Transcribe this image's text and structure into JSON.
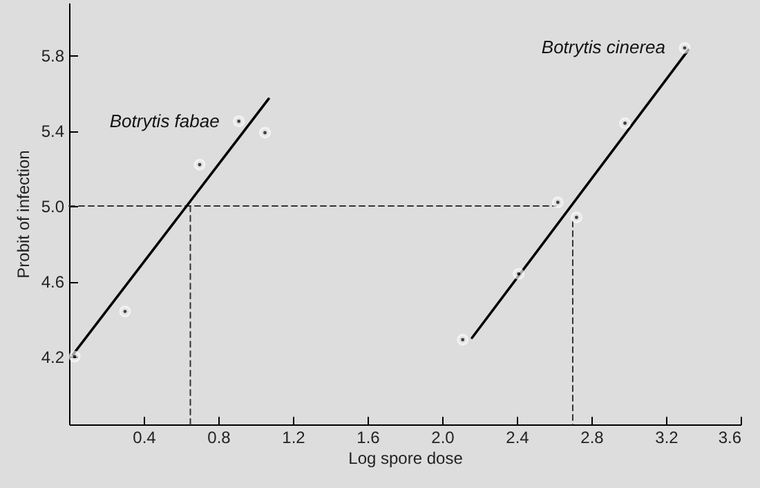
{
  "chart_data": {
    "type": "scatter",
    "xlabel": "Log spore dose",
    "ylabel": "Probit of infection",
    "xlim": [
      0,
      3.6
    ],
    "xticks": [
      {
        "value": 0.4,
        "label": "0.4"
      },
      {
        "value": 0.8,
        "label": "0.8"
      },
      {
        "value": 1.2,
        "label": "1.2"
      },
      {
        "value": 1.6,
        "label": "1.6"
      },
      {
        "value": 2.0,
        "label": "2.0"
      },
      {
        "value": 2.4,
        "label": "2.4"
      },
      {
        "value": 2.8,
        "label": "2.8"
      },
      {
        "value": 3.2,
        "label": "3.2"
      },
      {
        "value": 3.6,
        "label": "3.6"
      }
    ],
    "ylim": [
      3.84,
      6.08
    ],
    "yticks": [
      {
        "value": 4.2,
        "label": "4.2"
      },
      {
        "value": 4.6,
        "label": "4.6"
      },
      {
        "value": 5.0,
        "label": "5.0"
      },
      {
        "value": 5.4,
        "label": "5.4"
      },
      {
        "value": 5.8,
        "label": "5.8"
      }
    ],
    "grid": false,
    "series": [
      {
        "type": "line",
        "line_style": "dashed",
        "color": "#333333",
        "x": [
          0,
          2.61
        ],
        "values": [
          5.0,
          5.0
        ]
      },
      {
        "type": "line",
        "line_style": "dashed",
        "color": "#333333",
        "x": [
          0.65,
          0.65
        ],
        "values": [
          5.0,
          3.84
        ]
      },
      {
        "type": "line",
        "line_style": "dashed",
        "color": "#333333",
        "x": [
          2.7,
          2.7
        ],
        "values": [
          4.92,
          3.84
        ]
      },
      {
        "type": "line",
        "line_style": "solid",
        "color": "#000000",
        "x": [
          0.02,
          1.07
        ],
        "values": [
          4.21,
          5.57
        ]
      },
      {
        "type": "line",
        "line_style": "solid",
        "color": "#000000",
        "x": [
          2.16,
          3.32
        ],
        "values": [
          4.3,
          5.83
        ]
      },
      {
        "marker": "circle",
        "color": "#000000",
        "x": [
          0.03,
          0.3,
          0.7,
          0.91,
          1.05
        ],
        "values": [
          4.2,
          4.44,
          5.22,
          5.45,
          5.39
        ]
      },
      {
        "marker": "circle",
        "color": "#000000",
        "x": [
          2.11,
          2.41,
          2.62,
          2.72,
          2.98,
          3.3
        ],
        "values": [
          4.29,
          4.64,
          5.02,
          4.94,
          5.44,
          5.84
        ]
      }
    ],
    "annotations": [
      "Botrytis fabae",
      "Botrytis cinerea"
    ]
  }
}
